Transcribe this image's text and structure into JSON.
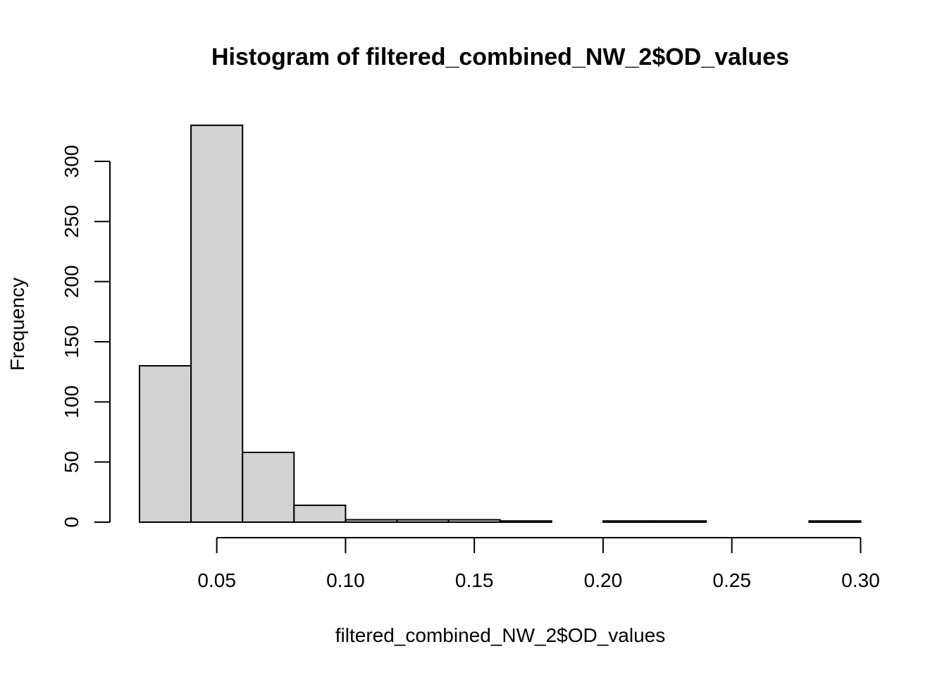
{
  "chart_data": {
    "type": "bar",
    "subtype": "histogram",
    "title": "Histogram of filtered_combined_NW_2$OD_values",
    "xlabel": "filtered_combined_NW_2$OD_values",
    "ylabel": "Frequency",
    "bins": [
      {
        "x0": 0.02,
        "x1": 0.04,
        "count": 130
      },
      {
        "x0": 0.04,
        "x1": 0.06,
        "count": 330
      },
      {
        "x0": 0.06,
        "x1": 0.08,
        "count": 58
      },
      {
        "x0": 0.08,
        "x1": 0.1,
        "count": 14
      },
      {
        "x0": 0.1,
        "x1": 0.12,
        "count": 2
      },
      {
        "x0": 0.12,
        "x1": 0.14,
        "count": 2
      },
      {
        "x0": 0.14,
        "x1": 0.16,
        "count": 2
      },
      {
        "x0": 0.16,
        "x1": 0.18,
        "count": 1
      },
      {
        "x0": 0.18,
        "x1": 0.2,
        "count": 0
      },
      {
        "x0": 0.2,
        "x1": 0.22,
        "count": 1
      },
      {
        "x0": 0.22,
        "x1": 0.24,
        "count": 1
      },
      {
        "x0": 0.24,
        "x1": 0.26,
        "count": 0
      },
      {
        "x0": 0.26,
        "x1": 0.28,
        "count": 0
      },
      {
        "x0": 0.28,
        "x1": 0.3,
        "count": 1
      }
    ],
    "xlim": [
      0.02,
      0.3
    ],
    "ylim": [
      0,
      330
    ],
    "x_ticks": [
      0.05,
      0.1,
      0.15,
      0.2,
      0.25,
      0.3
    ],
    "x_tick_labels": [
      "0.05",
      "0.10",
      "0.15",
      "0.20",
      "0.25",
      "0.30"
    ],
    "y_ticks": [
      0,
      50,
      100,
      150,
      200,
      250,
      300
    ],
    "y_tick_labels": [
      "0",
      "50",
      "100",
      "150",
      "200",
      "250",
      "300"
    ],
    "grid": false,
    "colors": {
      "bar_fill": "#d3d3d3",
      "bar_stroke": "#000000",
      "axis": "#000000",
      "background": "#ffffff"
    }
  }
}
